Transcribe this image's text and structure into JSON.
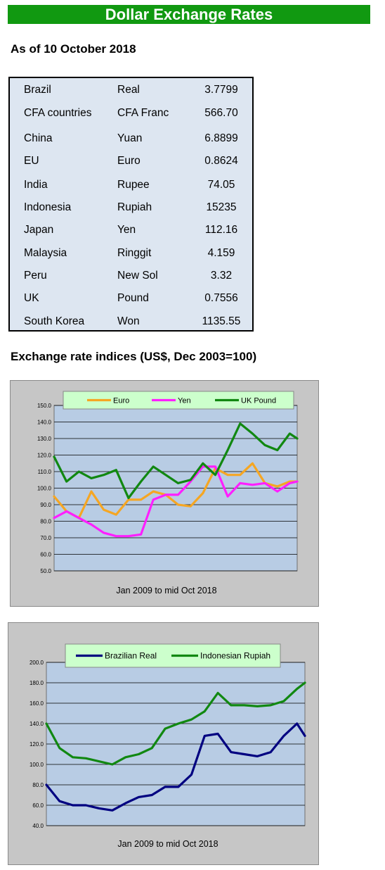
{
  "page": {
    "title": "Dollar Exchange Rates",
    "as_of": "As of 10 October 2018",
    "indices_heading": "Exchange rate indices (US$, Dec 2003=100)"
  },
  "rates": [
    {
      "country": "Brazil",
      "currency": "Real",
      "value": "3.7799"
    },
    {
      "country": "CFA countries",
      "currency": "CFA Franc",
      "value": "566.70"
    },
    {
      "country": "China",
      "currency": "Yuan",
      "value": "6.8899"
    },
    {
      "country": "EU",
      "currency": "Euro",
      "value": "0.8624"
    },
    {
      "country": "India",
      "currency": "Rupee",
      "value": "74.05"
    },
    {
      "country": "Indonesia",
      "currency": "Rupiah",
      "value": "15235"
    },
    {
      "country": "Japan",
      "currency": "Yen",
      "value": "112.16"
    },
    {
      "country": "Malaysia",
      "currency": "Ringgit",
      "value": "4.159"
    },
    {
      "country": "Peru",
      "currency": "New Sol",
      "value": "3.32"
    },
    {
      "country": "UK",
      "currency": "Pound",
      "value": "0.7556"
    },
    {
      "country": "South Korea",
      "currency": "Won",
      "value": "1135.55"
    }
  ],
  "chart_data": [
    {
      "type": "line",
      "xlabel": "Jan 2009  to mid Oct 2018",
      "ylim": [
        50,
        150
      ],
      "y_ticks": [
        "50.0",
        "60.0",
        "70.0",
        "80.0",
        "90.0",
        "100.0",
        "110.0",
        "120.0",
        "130.0",
        "140.0",
        "150.0"
      ],
      "grid": true,
      "legend_position": "top",
      "x": [
        2009.0,
        2009.5,
        2010.0,
        2010.5,
        2011.0,
        2011.5,
        2012.0,
        2012.5,
        2013.0,
        2013.5,
        2014.0,
        2014.5,
        2015.0,
        2015.5,
        2016.0,
        2016.5,
        2017.0,
        2017.5,
        2018.0,
        2018.5,
        2018.8
      ],
      "series": [
        {
          "name": "Euro",
          "color": "#f5a623",
          "values": [
            95,
            86,
            82,
            98,
            87,
            84,
            93,
            93,
            98,
            96,
            90,
            89,
            97,
            112,
            108,
            108,
            115,
            103,
            101,
            104,
            104
          ]
        },
        {
          "name": "Yen",
          "color": "#ff1fff",
          "values": [
            82,
            86,
            82,
            78,
            73,
            71,
            71,
            72,
            93,
            96,
            96,
            104,
            113,
            113,
            95,
            103,
            102,
            103,
            98,
            103,
            104
          ]
        },
        {
          "name": "UK Pound",
          "color": "#118811",
          "values": [
            119,
            104,
            110,
            106,
            108,
            111,
            94,
            104,
            113,
            108,
            103,
            105,
            115,
            108,
            123,
            139,
            133,
            126,
            123,
            133,
            130
          ]
        }
      ]
    },
    {
      "type": "line",
      "xlabel": "Jan 2009  to mid Oct 2018",
      "ylim": [
        40,
        200
      ],
      "y_ticks": [
        "40.0",
        "60.0",
        "80.0",
        "100.0",
        "120.0",
        "140.0",
        "160.0",
        "180.0",
        "200.0"
      ],
      "grid": true,
      "legend_position": "top",
      "x": [
        2009.0,
        2009.5,
        2010.0,
        2010.5,
        2011.0,
        2011.5,
        2012.0,
        2012.5,
        2013.0,
        2013.5,
        2014.0,
        2014.5,
        2015.0,
        2015.5,
        2016.0,
        2016.5,
        2017.0,
        2017.5,
        2018.0,
        2018.5,
        2018.8
      ],
      "series": [
        {
          "name": "Brazilian Real",
          "color": "#000080",
          "values": [
            80,
            64,
            60,
            60,
            57,
            55,
            62,
            68,
            70,
            78,
            78,
            90,
            128,
            130,
            112,
            110,
            108,
            112,
            128,
            140,
            128
          ]
        },
        {
          "name": "Indonesian Rupiah",
          "color": "#118811",
          "values": [
            140,
            116,
            107,
            106,
            103,
            100,
            107,
            110,
            116,
            135,
            140,
            144,
            152,
            170,
            158,
            158,
            157,
            158,
            162,
            174,
            180
          ]
        }
      ]
    }
  ]
}
